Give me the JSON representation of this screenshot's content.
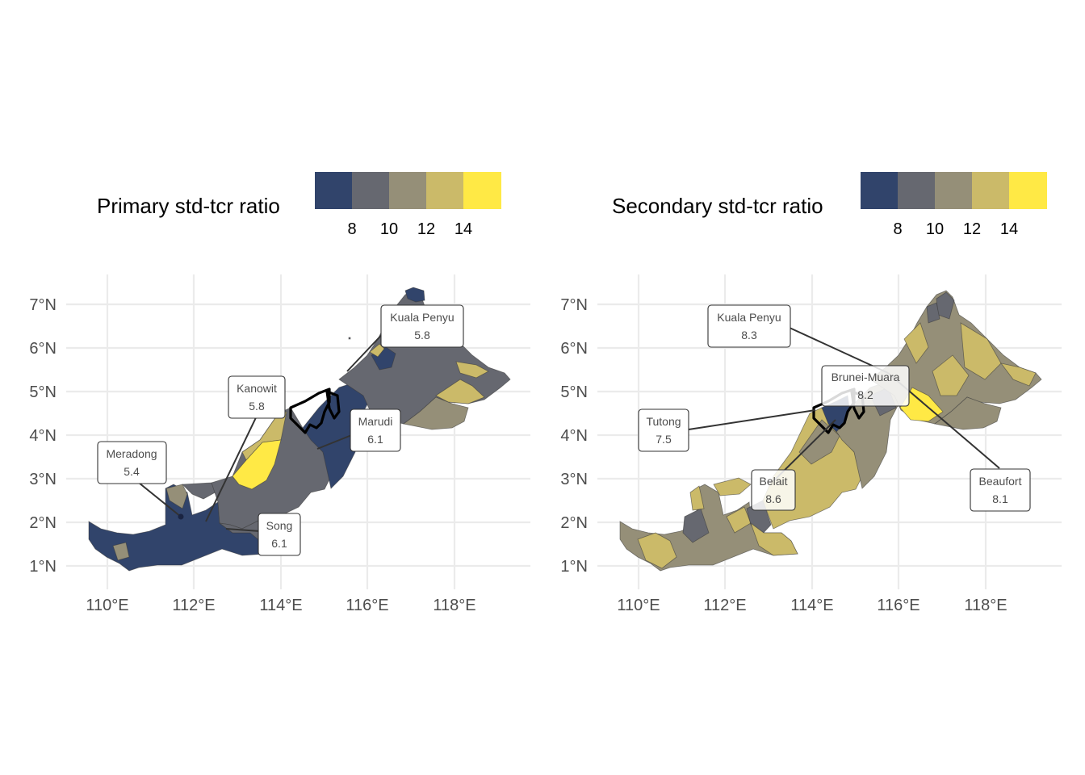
{
  "panels": [
    {
      "id": "primary",
      "legend": {
        "title": "Primary std-tcr ratio",
        "ticks": [
          "8",
          "10",
          "12",
          "14"
        ],
        "colors": [
          "#31446b",
          "#666870",
          "#958f78",
          "#cbba69",
          "#ffe945"
        ]
      },
      "x_ticks": [
        "110°E",
        "112°E",
        "114°E",
        "116°E",
        "118°E"
      ],
      "y_ticks": [
        "7°N",
        "6°N",
        "5°N",
        "4°N",
        "3°N",
        "2°N",
        "1°N"
      ],
      "labels": [
        {
          "name": "Kuala Penyu",
          "value": "5.8"
        },
        {
          "name": "Kanowit",
          "value": "5.8"
        },
        {
          "name": "Marudi",
          "value": "6.1"
        },
        {
          "name": "Meradong",
          "value": "5.4"
        },
        {
          "name": "Song",
          "value": "6.1"
        }
      ]
    },
    {
      "id": "secondary",
      "legend": {
        "title": "Secondary std-tcr ratio",
        "ticks": [
          "8",
          "10",
          "12",
          "14"
        ],
        "colors": [
          "#31446b",
          "#666870",
          "#958f78",
          "#cbba69",
          "#ffe945"
        ]
      },
      "x_ticks": [
        "110°E",
        "112°E",
        "114°E",
        "116°E",
        "118°E"
      ],
      "y_ticks": [
        "7°N",
        "6°N",
        "5°N",
        "4°N",
        "3°N",
        "2°N",
        "1°N"
      ],
      "labels": [
        {
          "name": "Kuala Penyu",
          "value": "8.3"
        },
        {
          "name": "Brunei-Muara",
          "value": "8.2"
        },
        {
          "name": "Tutong",
          "value": "7.5"
        },
        {
          "name": "Belait",
          "value": "8.6"
        },
        {
          "name": "Beaufort",
          "value": "8.1"
        }
      ]
    }
  ],
  "palette": {
    "c1": "#31446b",
    "c2": "#666870",
    "c3": "#958f78",
    "c4": "#cbba69",
    "c5": "#ffe945"
  }
}
